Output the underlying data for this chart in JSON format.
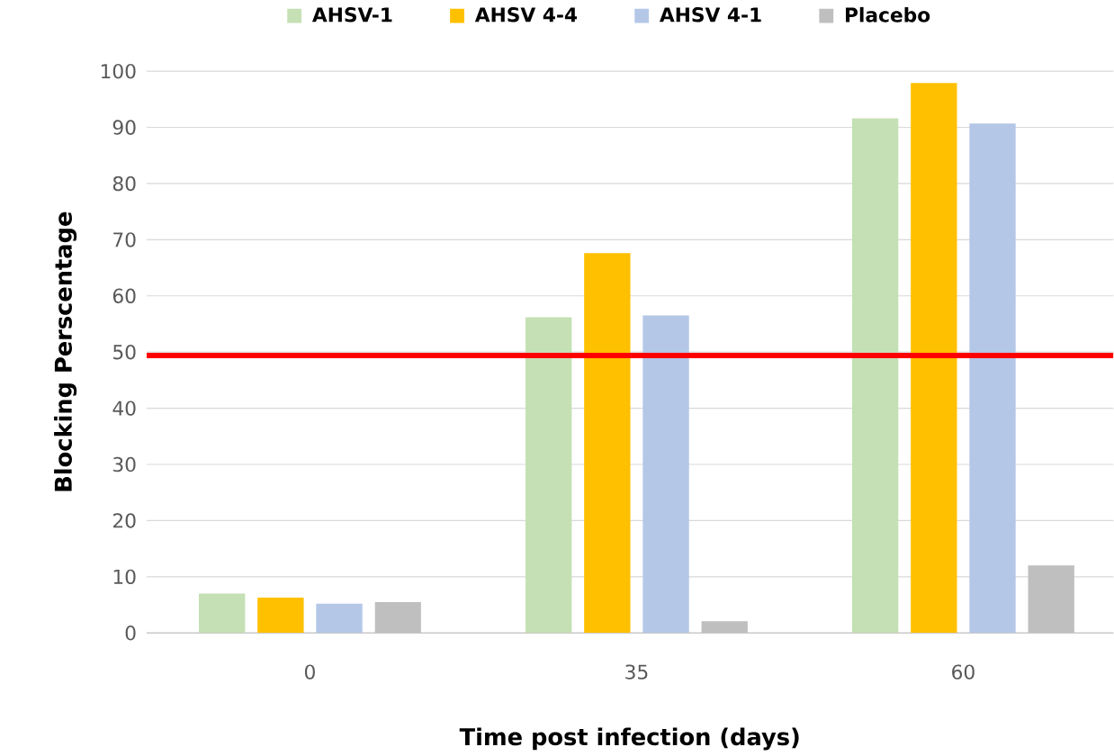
{
  "chart_data": {
    "type": "bar",
    "xlabel": "Time post infection (days)",
    "ylabel": "Blocking Perscentage",
    "categories": [
      "0",
      "35",
      "60"
    ],
    "series": [
      {
        "name": "AHSV-1",
        "color": "#c5e0b4",
        "values": [
          7.0,
          56.2,
          91.6
        ]
      },
      {
        "name": "AHSV 4-4",
        "color": "#ffc000",
        "values": [
          6.3,
          67.6,
          97.9
        ]
      },
      {
        "name": "AHSV 4-1",
        "color": "#b4c7e7",
        "values": [
          5.2,
          56.5,
          90.7
        ]
      },
      {
        "name": "Placebo",
        "color": "#bfbfbf",
        "values": [
          5.5,
          2.1,
          12.0
        ]
      }
    ],
    "ylim": [
      0,
      100
    ],
    "yticks": [
      0,
      10,
      20,
      30,
      40,
      50,
      60,
      70,
      80,
      90,
      100
    ],
    "ref_lines": [
      {
        "axis": "y",
        "value": 49.4,
        "color": "#ff0000"
      }
    ],
    "grid": "y",
    "legend": "top"
  }
}
